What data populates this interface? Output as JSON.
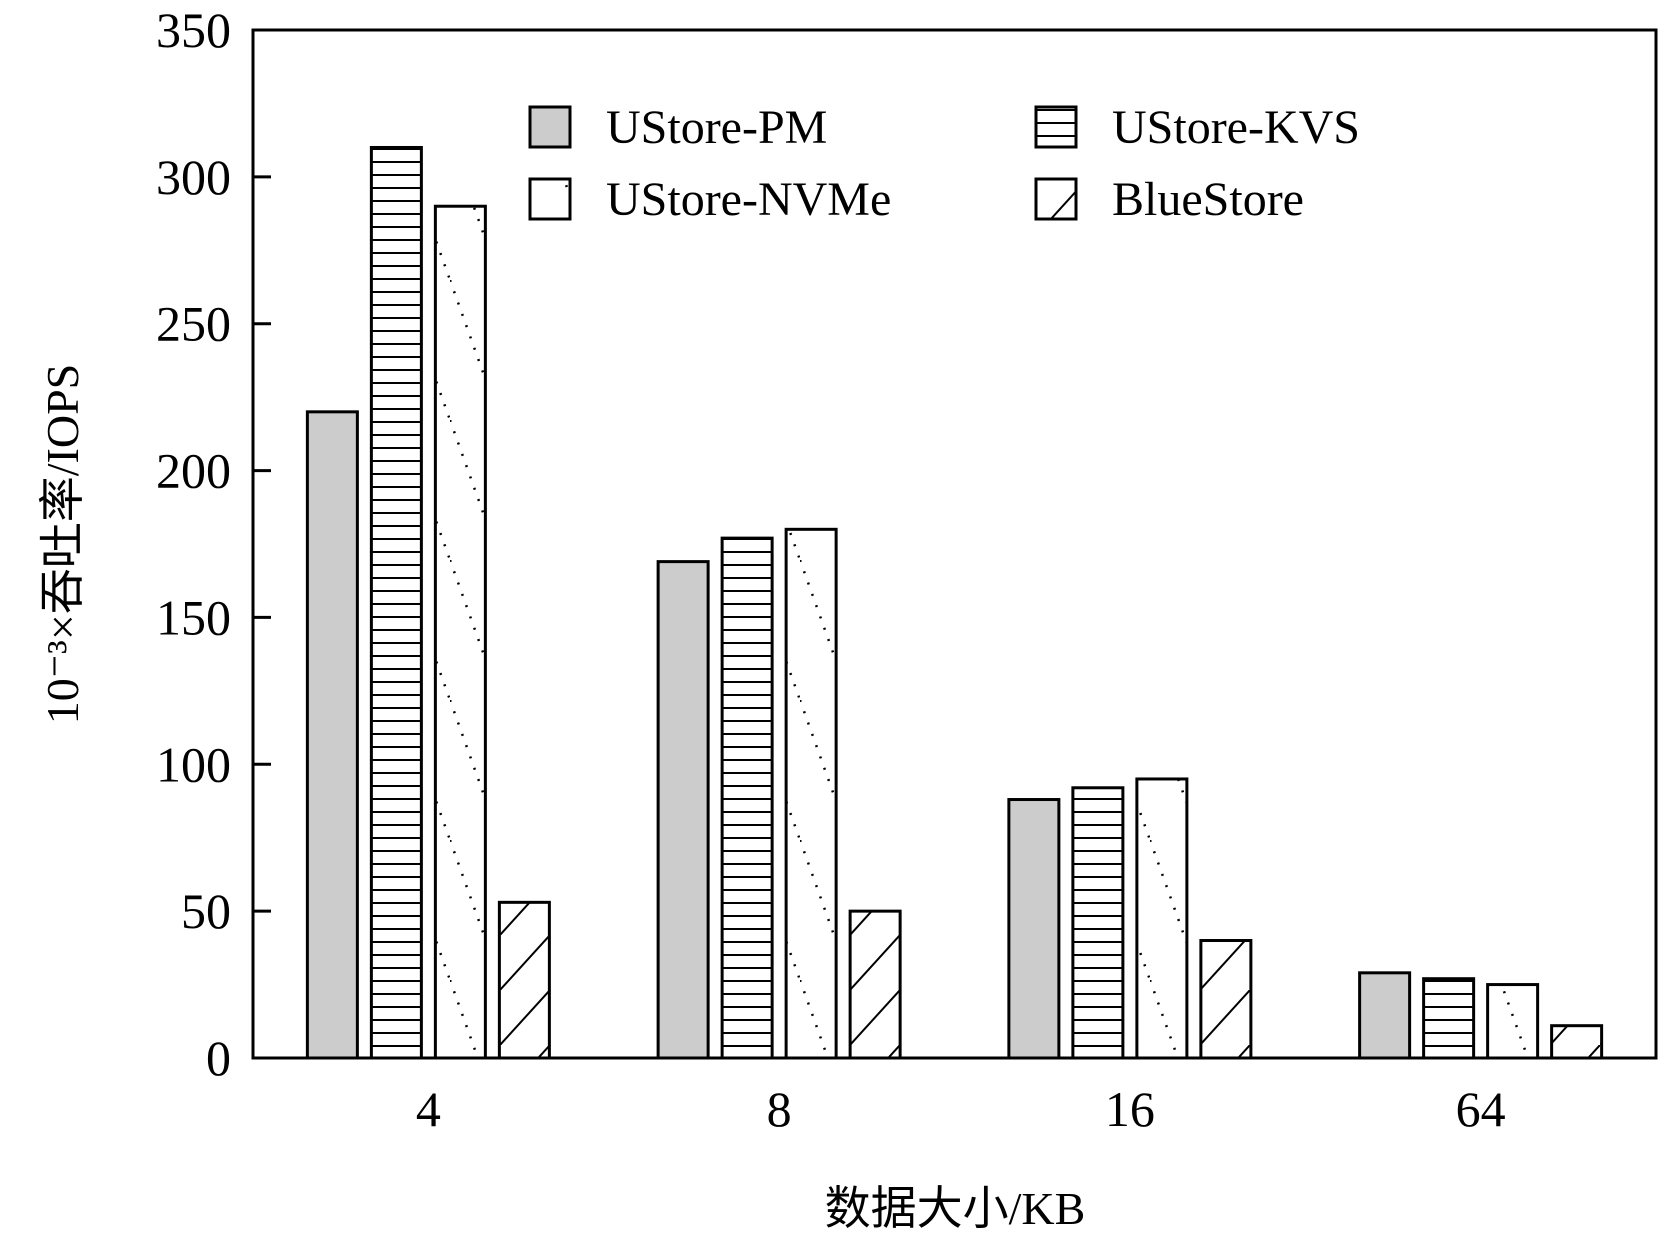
{
  "chart_data": {
    "type": "bar",
    "title": "",
    "xlabel": "数据大小/KB",
    "ylabel": "10⁻³×吞吐率/IOPS",
    "categories": [
      "4",
      "8",
      "16",
      "64"
    ],
    "ylim": [
      0,
      350
    ],
    "yticks": [
      0,
      50,
      100,
      150,
      200,
      250,
      300,
      350
    ],
    "grid": false,
    "legend_position": "top",
    "series": [
      {
        "name": "UStore-PM",
        "values": [
          220,
          169,
          88,
          29
        ],
        "pattern": "solid-gray",
        "color": "#cccccc"
      },
      {
        "name": "UStore-KVS",
        "values": [
          310,
          177,
          92,
          27
        ],
        "pattern": "horizontal-lines",
        "color": "#ffffff"
      },
      {
        "name": "UStore-NVMe",
        "values": [
          290,
          180,
          95,
          25
        ],
        "pattern": "dotted-diagonal",
        "color": "#ffffff"
      },
      {
        "name": "BlueStore",
        "values": [
          53,
          50,
          40,
          11
        ],
        "pattern": "diagonal-lines",
        "color": "#ffffff"
      }
    ]
  }
}
